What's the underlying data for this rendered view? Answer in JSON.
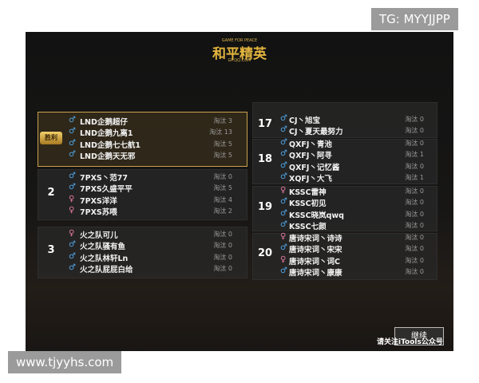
{
  "watermark_top": "TG: MYYJJPP",
  "watermark_bottom": "www.tjyyhs.com",
  "logo": {
    "tagline": "GAME FOR PEACE",
    "title": "和平精英",
    "url": "GP.QQ.COM"
  },
  "left_teams": [
    {
      "badge": "胜利",
      "players": [
        {
          "gender": "♂",
          "name": "LND企鹅超仔",
          "kills": "淘汰 3"
        },
        {
          "gender": "♂",
          "name": "LND企鹅九离1",
          "kills": "淘汰 13"
        },
        {
          "gender": "♂",
          "name": "LND企鹅七七航1",
          "kills": "淘汰 5"
        },
        {
          "gender": "♂",
          "name": "LND企鹅天无邪",
          "kills": "淘汰 5"
        }
      ]
    },
    {
      "rank": 2,
      "players": [
        {
          "gender": "♂",
          "name": "7PXS丶范77",
          "kills": "淘汰 0"
        },
        {
          "gender": "♂",
          "name": "7PXS久盛平平",
          "kills": "淘汰 5"
        },
        {
          "gender": "♀",
          "name": "7PXS洋洋",
          "kills": "淘汰 4"
        },
        {
          "gender": "♀",
          "name": "7PXS苏喂",
          "kills": "淘汰 2"
        }
      ]
    },
    {
      "rank": 3,
      "players": [
        {
          "gender": "♀",
          "name": "火之队可儿",
          "kills": "淘汰 0"
        },
        {
          "gender": "♂",
          "name": "火之队骚有鱼",
          "kills": "淘汰 0"
        },
        {
          "gender": "♂",
          "name": "火之队林轩Ln",
          "kills": "淘汰 0"
        },
        {
          "gender": "♂",
          "name": "火之队屁屁白给",
          "kills": "淘汰 0"
        }
      ]
    }
  ],
  "right_teams": [
    {
      "rank": 17,
      "players": [
        {
          "gender": "♂",
          "name": "CJ丶旭宝",
          "kills": "淘汰 0"
        },
        {
          "gender": "♂",
          "name": "CJ丶夏天最努力",
          "kills": "淘汰 0"
        }
      ]
    },
    {
      "rank": 18,
      "players": [
        {
          "gender": "♂",
          "name": "QXFJ丶青池",
          "kills": "淘汰 0"
        },
        {
          "gender": "♂",
          "name": "QXFJ丶阿寻",
          "kills": "淘汰 1"
        },
        {
          "gender": "♂",
          "name": "QXFJ丶记忆酱",
          "kills": "淘汰 0"
        },
        {
          "gender": "♂",
          "name": "XQFJ丶大飞",
          "kills": "淘汰 1"
        }
      ]
    },
    {
      "rank": 19,
      "players": [
        {
          "gender": "♀",
          "name": "KSSC雷神",
          "kills": "淘汰 0"
        },
        {
          "gender": "♂",
          "name": "KSSC初见",
          "kills": "淘汰 0"
        },
        {
          "gender": "♂",
          "name": "KSSC晓岚qwq",
          "kills": "淘汰 0"
        },
        {
          "gender": "♂",
          "name": "KSSC七颜",
          "kills": "淘汰 0"
        }
      ]
    },
    {
      "rank": 20,
      "players": [
        {
          "gender": "♀",
          "name": "唐诗宋词丶诗诗",
          "kills": "淘汰 0"
        },
        {
          "gender": "♂",
          "name": "唐诗宋词丶宋宋",
          "kills": "淘汰 0"
        },
        {
          "gender": "♀",
          "name": "唐诗宋词丶词C",
          "kills": "淘汰 0"
        },
        {
          "gender": "♂",
          "name": "唐诗宋词丶康康",
          "kills": "淘汰 0"
        }
      ]
    }
  ],
  "continue_button": "继续",
  "footer_note": "请关注iTools公众号"
}
